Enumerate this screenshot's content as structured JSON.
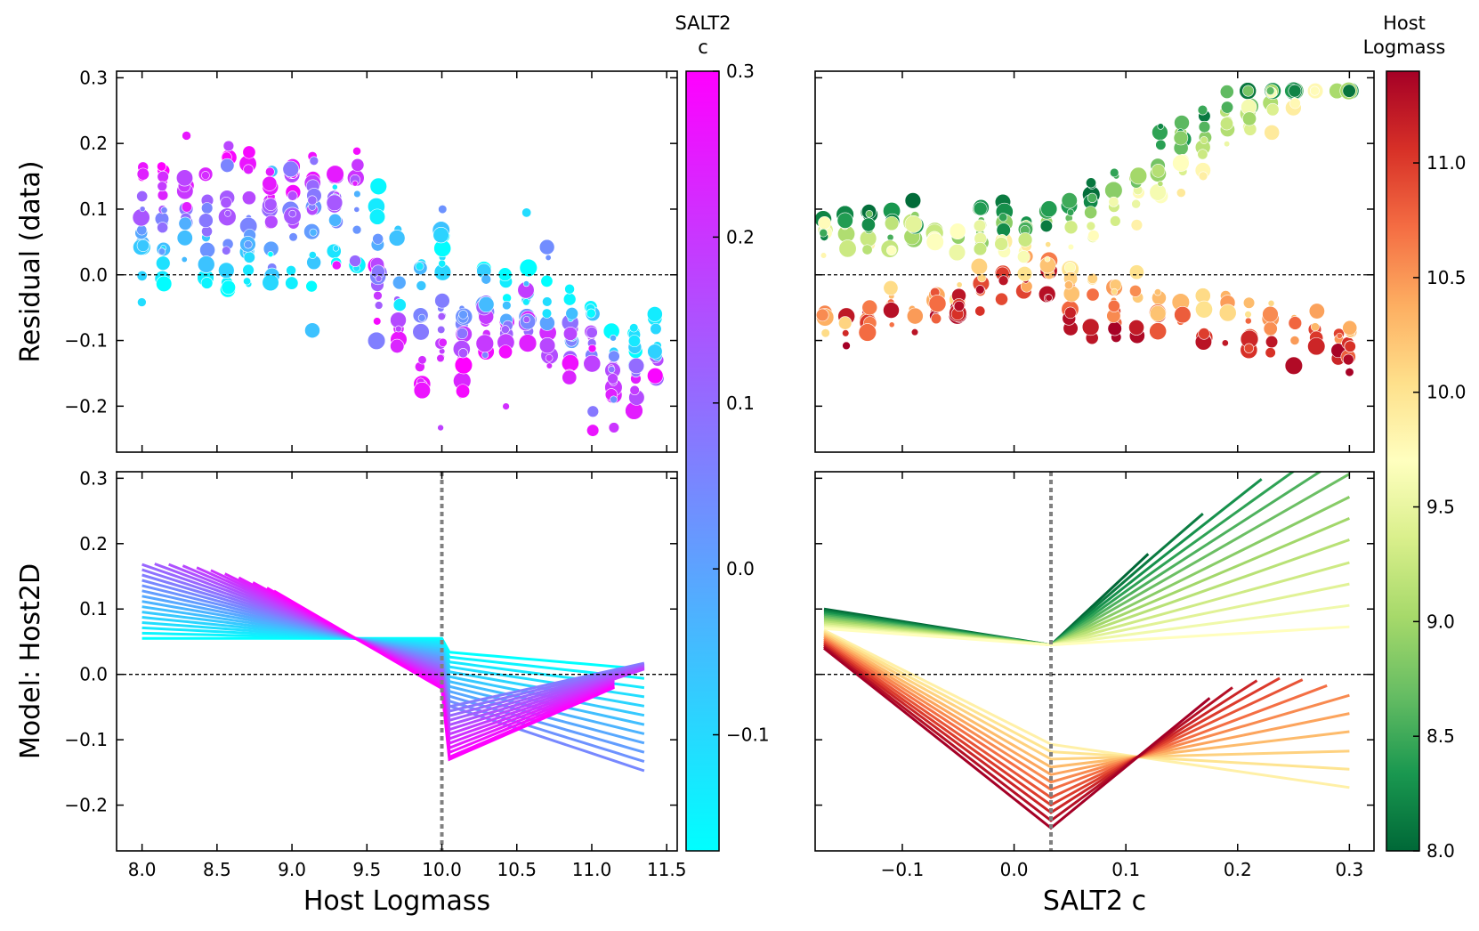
{
  "chart_data": [
    {
      "id": "top-left",
      "type": "scatter",
      "title": "",
      "xlabel": "",
      "ylabel": "Residual (data)",
      "xlim": [
        7.83,
        11.57
      ],
      "ylim": [
        -0.27,
        0.31
      ],
      "xticks": [
        8.0,
        8.5,
        9.0,
        9.5,
        10.0,
        10.5,
        11.0,
        11.5
      ],
      "xtick_labels": [
        "",
        "",
        "",
        "",
        "",
        "",
        "",
        ""
      ],
      "yticks": [
        -0.2,
        -0.1,
        0.0,
        0.1,
        0.2,
        0.3
      ],
      "ytick_labels": [
        "−0.2",
        "−0.1",
        "0.0",
        "0.1",
        "0.2",
        "0.3"
      ],
      "hline": 0.0,
      "color_by": "SALT2 c",
      "x_columns": [
        8.0,
        8.14,
        8.29,
        8.43,
        8.57,
        8.71,
        8.86,
        9.0,
        9.14,
        9.29,
        9.43,
        9.57,
        9.71,
        9.86,
        10.0,
        10.14,
        10.29,
        10.43,
        10.57,
        10.71,
        10.86,
        11.0,
        11.14,
        11.29,
        11.43
      ],
      "column_residual_center": [
        0.05,
        0.055,
        0.06,
        0.055,
        0.06,
        0.06,
        0.04,
        0.05,
        0.07,
        0.08,
        0.07,
        0.04,
        0.01,
        -0.03,
        -0.02,
        -0.03,
        -0.04,
        -0.05,
        -0.05,
        -0.07,
        -0.08,
        -0.08,
        -0.12,
        -0.13,
        -0.11
      ]
    },
    {
      "id": "top-right",
      "type": "scatter",
      "title": "",
      "xlabel": "",
      "ylabel": "",
      "xlim": [
        -0.178,
        0.322
      ],
      "ylim": [
        -0.27,
        0.31
      ],
      "xticks": [
        -0.1,
        0.0,
        0.1,
        0.2,
        0.3
      ],
      "xtick_labels": [
        "",
        "",
        "",
        "",
        ""
      ],
      "yticks": [
        -0.2,
        -0.1,
        0.0,
        0.1,
        0.2,
        0.3
      ],
      "ytick_labels": [
        "",
        "",
        "",
        "",
        "",
        ""
      ],
      "hline": 0.0,
      "color_by": "Host Logmass",
      "x_columns": [
        -0.17,
        -0.15,
        -0.13,
        -0.11,
        -0.09,
        -0.07,
        -0.05,
        -0.03,
        -0.01,
        0.01,
        0.03,
        0.05,
        0.07,
        0.09,
        0.11,
        0.13,
        0.15,
        0.17,
        0.19,
        0.21,
        0.23,
        0.25,
        0.27,
        0.29,
        0.3
      ]
    },
    {
      "id": "bottom-left",
      "type": "line",
      "title": "",
      "xlabel": "Host Logmass",
      "ylabel": "Model: Host2D",
      "xlim": [
        7.83,
        11.57
      ],
      "ylim": [
        -0.27,
        0.31
      ],
      "xticks": [
        8.0,
        8.5,
        9.0,
        9.5,
        10.0,
        10.5,
        11.0,
        11.5
      ],
      "xtick_labels": [
        "8.0",
        "8.5",
        "9.0",
        "9.5",
        "10.0",
        "10.5",
        "11.0",
        "11.5"
      ],
      "yticks": [
        -0.2,
        -0.1,
        0.0,
        0.1,
        0.2,
        0.3
      ],
      "ytick_labels": [
        "−0.2",
        "−0.1",
        "0.0",
        "0.1",
        "0.2",
        "0.3"
      ],
      "hline": 0.0,
      "vline": 10.0,
      "color_by": "SALT2 c",
      "model": "one line per SALT2 c value; linear in logmass below and above the 10.0 step",
      "c_values": [
        -0.17,
        -0.15,
        -0.13,
        -0.11,
        -0.09,
        -0.07,
        -0.05,
        -0.03,
        -0.01,
        0.01,
        0.03,
        0.05,
        0.07,
        0.09,
        0.11,
        0.13,
        0.15,
        0.17,
        0.19,
        0.21,
        0.23,
        0.25,
        0.27,
        0.29,
        0.3
      ]
    },
    {
      "id": "bottom-right",
      "type": "line",
      "title": "",
      "xlabel": "SALT2 c",
      "ylabel": "",
      "xlim": [
        -0.178,
        0.322
      ],
      "ylim": [
        -0.27,
        0.31
      ],
      "xticks": [
        -0.1,
        0.0,
        0.1,
        0.2,
        0.3
      ],
      "xtick_labels": [
        "−0.1",
        "0.0",
        "0.1",
        "0.2",
        "0.3"
      ],
      "yticks": [
        -0.2,
        -0.1,
        0.0,
        0.1,
        0.2,
        0.3
      ],
      "ytick_labels": [
        "",
        "",
        "",
        "",
        "",
        ""
      ],
      "hline": 0.0,
      "vline": 0.033,
      "color_by": "Host Logmass",
      "model": "one line per host logmass value; linear in c below and above the 0.033 break",
      "mass_values": [
        8.0,
        8.14,
        8.29,
        8.43,
        8.57,
        8.71,
        8.86,
        9.0,
        9.14,
        9.29,
        9.43,
        9.57,
        9.71,
        9.86,
        10.0,
        10.14,
        10.29,
        10.43,
        10.57,
        10.71,
        10.86,
        11.0,
        11.14,
        11.29,
        11.43
      ]
    }
  ],
  "colorbars": {
    "salt2c": {
      "title_line1": "SALT2",
      "title_line2": "c",
      "range": [
        -0.17,
        0.3
      ],
      "colormap": "cool",
      "color_low": "#00ffff",
      "color_high": "#ff00ff",
      "ticks": [
        -0.1,
        0.0,
        0.1,
        0.2,
        0.3
      ],
      "tick_labels": [
        "−0.1",
        "0.0",
        "0.1",
        "0.2",
        "0.3"
      ]
    },
    "logmass": {
      "title_line1": "Host",
      "title_line2": "Logmass",
      "range": [
        8.0,
        11.4
      ],
      "colormap": "RdYlGn_r",
      "stops": [
        "#006837",
        "#1a9850",
        "#66bd63",
        "#a6d96a",
        "#d9ef8b",
        "#ffffbf",
        "#fee08b",
        "#fdae61",
        "#f46d43",
        "#d73027",
        "#a50026"
      ],
      "ticks": [
        8.0,
        8.5,
        9.0,
        9.5,
        10.0,
        10.5,
        11.0
      ],
      "tick_labels": [
        "8.0",
        "8.5",
        "9.0",
        "9.5",
        "10.0",
        "10.5",
        "11.0"
      ]
    }
  }
}
